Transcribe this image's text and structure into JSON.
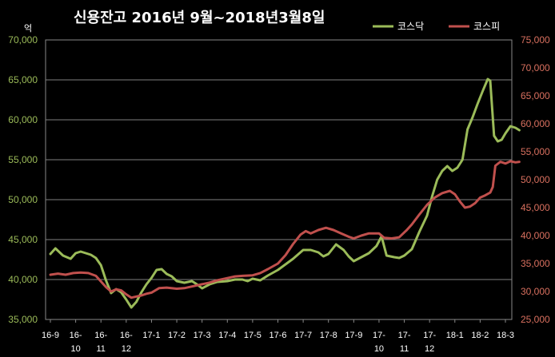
{
  "chart_data": {
    "type": "line",
    "title": "신용잔고 2016년 9월~2018년3월8일",
    "ylabel": "억",
    "ylim_left": [
      35000,
      70000
    ],
    "ylim_right": [
      25000,
      75000
    ],
    "yticks_left": [
      "35,000",
      "40,000",
      "45,000",
      "50,000",
      "55,000",
      "60,000",
      "65,000",
      "70,000"
    ],
    "yticks_right": [
      "25,000",
      "30,000",
      "35,000",
      "40,000",
      "45,000",
      "50,000",
      "55,000",
      "60,000",
      "65,000",
      "70,000",
      "75,000"
    ],
    "x_ticks": [
      {
        "l1": "16-9",
        "l2": ""
      },
      {
        "l1": "16-",
        "l2": "10"
      },
      {
        "l1": "16-",
        "l2": "11"
      },
      {
        "l1": "16-",
        "l2": "12"
      },
      {
        "l1": "17-1",
        "l2": ""
      },
      {
        "l1": "17-2",
        "l2": ""
      },
      {
        "l1": "17-3",
        "l2": ""
      },
      {
        "l1": "17-4",
        "l2": ""
      },
      {
        "l1": "17-5",
        "l2": ""
      },
      {
        "l1": "17-6",
        "l2": ""
      },
      {
        "l1": "17-7",
        "l2": ""
      },
      {
        "l1": "17-8",
        "l2": ""
      },
      {
        "l1": "17-9",
        "l2": ""
      },
      {
        "l1": "17-",
        "l2": "10"
      },
      {
        "l1": "17-",
        "l2": "11"
      },
      {
        "l1": "17-",
        "l2": "12"
      },
      {
        "l1": "18-1",
        "l2": ""
      },
      {
        "l1": "18-2",
        "l2": ""
      },
      {
        "l1": "18-3",
        "l2": ""
      }
    ],
    "grid": true,
    "legend_position": "top-right",
    "series": [
      {
        "name": "코스닥",
        "axis": "left",
        "color": "#9bbb59",
        "points": [
          [
            0,
            43200
          ],
          [
            0.2,
            43900
          ],
          [
            0.5,
            43000
          ],
          [
            0.8,
            42600
          ],
          [
            1.0,
            43300
          ],
          [
            1.2,
            43500
          ],
          [
            1.4,
            43300
          ],
          [
            1.6,
            43100
          ],
          [
            1.8,
            42700
          ],
          [
            2.0,
            41800
          ],
          [
            2.2,
            39900
          ],
          [
            2.4,
            38300
          ],
          [
            2.6,
            38800
          ],
          [
            2.8,
            38400
          ],
          [
            3.0,
            37500
          ],
          [
            3.2,
            36500
          ],
          [
            3.4,
            37200
          ],
          [
            3.6,
            38400
          ],
          [
            3.8,
            39400
          ],
          [
            4.0,
            40200
          ],
          [
            4.2,
            41200
          ],
          [
            4.4,
            41300
          ],
          [
            4.6,
            40700
          ],
          [
            4.8,
            40400
          ],
          [
            5.0,
            39800
          ],
          [
            5.3,
            39600
          ],
          [
            5.6,
            39800
          ],
          [
            5.8,
            39400
          ],
          [
            6.0,
            38900
          ],
          [
            6.3,
            39400
          ],
          [
            6.6,
            39700
          ],
          [
            7.0,
            39800
          ],
          [
            7.3,
            40000
          ],
          [
            7.6,
            40000
          ],
          [
            7.8,
            39800
          ],
          [
            8.0,
            40100
          ],
          [
            8.3,
            39900
          ],
          [
            8.6,
            40500
          ],
          [
            9.0,
            41200
          ],
          [
            9.3,
            41900
          ],
          [
            9.6,
            42600
          ],
          [
            10.0,
            43700
          ],
          [
            10.3,
            43700
          ],
          [
            10.6,
            43400
          ],
          [
            10.8,
            42900
          ],
          [
            11.0,
            43200
          ],
          [
            11.3,
            44400
          ],
          [
            11.6,
            43700
          ],
          [
            11.8,
            42900
          ],
          [
            12.0,
            42300
          ],
          [
            12.3,
            42800
          ],
          [
            12.6,
            43300
          ],
          [
            12.9,
            44200
          ],
          [
            13.1,
            45400
          ],
          [
            13.3,
            43000
          ],
          [
            13.6,
            42800
          ],
          [
            13.8,
            42700
          ],
          [
            14.0,
            43000
          ],
          [
            14.3,
            43800
          ],
          [
            14.6,
            46000
          ],
          [
            14.9,
            48000
          ],
          [
            15.1,
            50400
          ],
          [
            15.3,
            52500
          ],
          [
            15.5,
            53600
          ],
          [
            15.7,
            54200
          ],
          [
            15.9,
            53600
          ],
          [
            16.1,
            54000
          ],
          [
            16.3,
            55000
          ],
          [
            16.5,
            58800
          ],
          [
            16.7,
            60300
          ],
          [
            16.9,
            62000
          ],
          [
            17.1,
            63600
          ],
          [
            17.3,
            65100
          ],
          [
            17.4,
            64900
          ],
          [
            17.55,
            58000
          ],
          [
            17.7,
            57300
          ],
          [
            17.85,
            57500
          ],
          [
            18.0,
            58300
          ],
          [
            18.2,
            59200
          ],
          [
            18.4,
            59000
          ],
          [
            18.55,
            58700
          ]
        ]
      },
      {
        "name": "코스피",
        "axis": "right",
        "color": "#c0504d",
        "points": [
          [
            0,
            33000
          ],
          [
            0.3,
            33200
          ],
          [
            0.6,
            33000
          ],
          [
            0.9,
            33300
          ],
          [
            1.2,
            33400
          ],
          [
            1.5,
            33300
          ],
          [
            1.8,
            32800
          ],
          [
            2.0,
            31800
          ],
          [
            2.2,
            30800
          ],
          [
            2.4,
            30000
          ],
          [
            2.6,
            30400
          ],
          [
            2.8,
            30200
          ],
          [
            3.0,
            29500
          ],
          [
            3.2,
            28900
          ],
          [
            3.4,
            29100
          ],
          [
            3.6,
            29300
          ],
          [
            3.8,
            29600
          ],
          [
            4.0,
            29800
          ],
          [
            4.3,
            30600
          ],
          [
            4.6,
            30700
          ],
          [
            5.0,
            30500
          ],
          [
            5.3,
            30600
          ],
          [
            5.6,
            30900
          ],
          [
            6.0,
            31300
          ],
          [
            6.3,
            31600
          ],
          [
            6.6,
            32000
          ],
          [
            7.0,
            32400
          ],
          [
            7.3,
            32700
          ],
          [
            7.6,
            32800
          ],
          [
            8.0,
            32900
          ],
          [
            8.3,
            33300
          ],
          [
            8.6,
            34000
          ],
          [
            9.0,
            35000
          ],
          [
            9.3,
            36500
          ],
          [
            9.6,
            38500
          ],
          [
            9.9,
            40200
          ],
          [
            10.1,
            40800
          ],
          [
            10.3,
            40400
          ],
          [
            10.6,
            41000
          ],
          [
            10.9,
            41400
          ],
          [
            11.2,
            41000
          ],
          [
            11.5,
            40400
          ],
          [
            11.8,
            39800
          ],
          [
            12.0,
            39500
          ],
          [
            12.3,
            40000
          ],
          [
            12.6,
            40400
          ],
          [
            13.0,
            40400
          ],
          [
            13.2,
            39600
          ],
          [
            13.5,
            39500
          ],
          [
            13.8,
            39700
          ],
          [
            14.1,
            41000
          ],
          [
            14.3,
            42000
          ],
          [
            14.6,
            43800
          ],
          [
            14.9,
            45500
          ],
          [
            15.2,
            46800
          ],
          [
            15.5,
            47600
          ],
          [
            15.8,
            48000
          ],
          [
            16.0,
            47400
          ],
          [
            16.2,
            46100
          ],
          [
            16.4,
            45000
          ],
          [
            16.6,
            45200
          ],
          [
            16.8,
            45800
          ],
          [
            17.0,
            46800
          ],
          [
            17.2,
            47200
          ],
          [
            17.4,
            47700
          ],
          [
            17.5,
            48700
          ],
          [
            17.6,
            52500
          ],
          [
            17.8,
            53200
          ],
          [
            18.0,
            52900
          ],
          [
            18.2,
            53300
          ],
          [
            18.4,
            53100
          ],
          [
            18.55,
            53200
          ]
        ]
      }
    ]
  }
}
